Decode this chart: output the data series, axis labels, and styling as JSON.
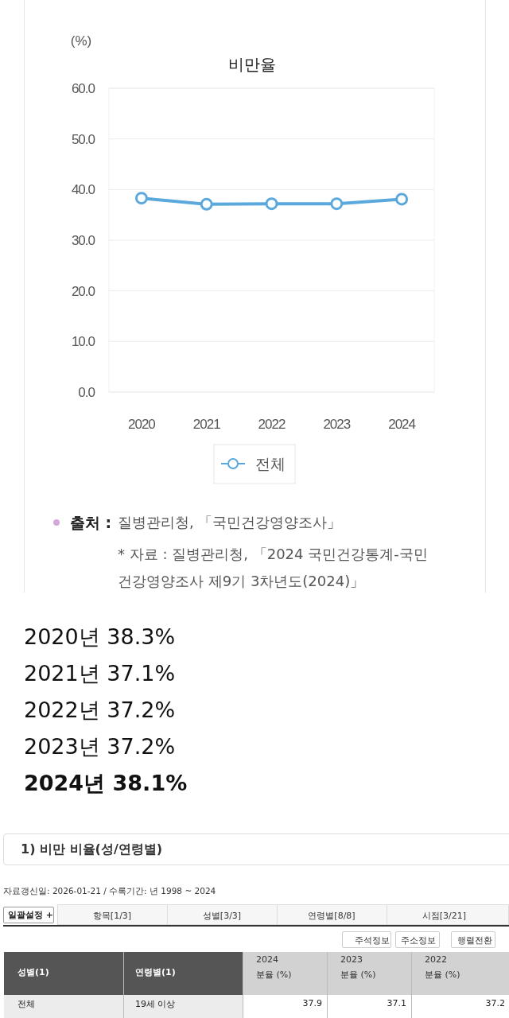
{
  "chart_data": {
    "type": "line",
    "title": "비만율",
    "ylabel": "(%)",
    "categories": [
      "2020",
      "2021",
      "2022",
      "2023",
      "2024"
    ],
    "series": [
      {
        "name": "전체",
        "color": "#5aa8dc",
        "values": [
          38.3,
          37.1,
          37.2,
          37.2,
          38.1
        ]
      }
    ],
    "ylim": [
      0,
      60
    ],
    "yticks": [
      {
        "value": 0,
        "label": "0.0"
      },
      {
        "value": 10,
        "label": "10.0"
      },
      {
        "value": 20,
        "label": "20.0"
      },
      {
        "value": 30,
        "label": "30.0"
      },
      {
        "value": 40,
        "label": "40.0"
      },
      {
        "value": 50,
        "label": "50.0"
      },
      {
        "value": 60,
        "label": "60.0"
      }
    ],
    "grid": "y",
    "legend": "bottom",
    "marker": "circle",
    "annotations": [
      "출처 :",
      "질병관리청, 「국민건강영양조사」",
      "* 자료 : 질병관리청, 「2024 국민건강통계-국민 건강영양조사 제9기 3차년도(2024)」",
      "2020년 38.3%",
      "2021년 37.1%",
      "2022년 37.2%",
      "2023년 37.2%",
      "2024년 38.1%",
      "1) 비만 비율(성/연령별)",
      "자료갱신일: 2026-01-21 / 수록기간: 년 1998 ~ 2024",
      "일괄설정 +",
      "항목[1/3]",
      "성별[3/3]",
      "연령별[8/8]",
      "시점[3/21]",
      "주석정보",
      "주소정보",
      "행렬전환",
      "성별(1)",
      "연령별(1)",
      "2024",
      "분율 (%)",
      "2023",
      "분율 (%)",
      "2022",
      "분율 (%)",
      "전체",
      "19세 이상",
      "37.9",
      "37.1",
      "37.2"
    ]
  }
}
